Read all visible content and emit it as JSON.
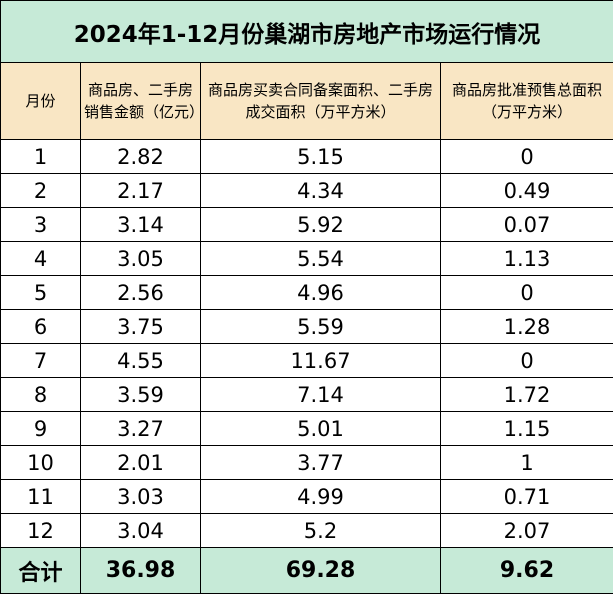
{
  "title": "2024年1-12月份巢湖市房地产市场运行情况",
  "headers": {
    "month": "月份",
    "sales_amount": "商品房、二手房销售金额（亿元）",
    "filed_area": "商品房买卖合同备案面积、二手房成交面积（万平方米）",
    "presale_area": "商品房批准预售总面积（万平方米）"
  },
  "rows": [
    {
      "month": "1",
      "sales_amount": "2.82",
      "filed_area": "5.15",
      "presale_area": "0"
    },
    {
      "month": "2",
      "sales_amount": "2.17",
      "filed_area": "4.34",
      "presale_area": "0.49"
    },
    {
      "month": "3",
      "sales_amount": "3.14",
      "filed_area": "5.92",
      "presale_area": "0.07"
    },
    {
      "month": "4",
      "sales_amount": "3.05",
      "filed_area": "5.54",
      "presale_area": "1.13"
    },
    {
      "month": "5",
      "sales_amount": "2.56",
      "filed_area": "4.96",
      "presale_area": "0"
    },
    {
      "month": "6",
      "sales_amount": "3.75",
      "filed_area": "5.59",
      "presale_area": "1.28"
    },
    {
      "month": "7",
      "sales_amount": "4.55",
      "filed_area": "11.67",
      "presale_area": "0"
    },
    {
      "month": "8",
      "sales_amount": "3.59",
      "filed_area": "7.14",
      "presale_area": "1.72"
    },
    {
      "month": "9",
      "sales_amount": "3.27",
      "filed_area": "5.01",
      "presale_area": "1.15"
    },
    {
      "month": "10",
      "sales_amount": "2.01",
      "filed_area": "3.77",
      "presale_area": "1"
    },
    {
      "month": "11",
      "sales_amount": "3.03",
      "filed_area": "4.99",
      "presale_area": "0.71"
    },
    {
      "month": "12",
      "sales_amount": "3.04",
      "filed_area": "5.2",
      "presale_area": "2.07"
    }
  ],
  "total": {
    "label": "合计",
    "sales_amount": "36.98",
    "filed_area": "69.28",
    "presale_area": "9.62"
  },
  "colors": {
    "title_bg": "#c6ead7",
    "header_bg": "#f9e6c4",
    "total_bg": "#c6ead7"
  }
}
